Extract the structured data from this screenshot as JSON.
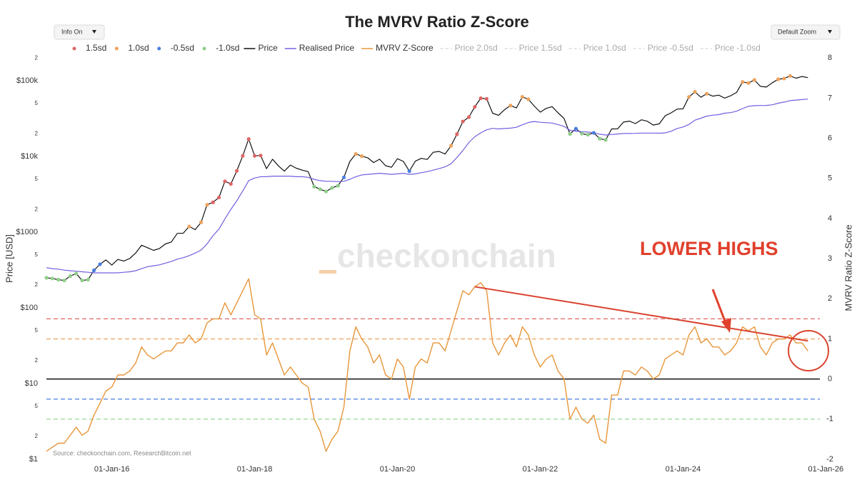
{
  "chart_data": {
    "type": "line",
    "title": "The MVRV Ratio Z-Score",
    "controls": {
      "info": "Info On",
      "zoom": "Default Zoom"
    },
    "x": [
      "2015-02",
      "2015-03",
      "2015-04",
      "2015-05",
      "2015-06",
      "2015-07",
      "2015-08",
      "2015-09",
      "2015-10",
      "2015-11",
      "2015-12",
      "2016-01",
      "2016-02",
      "2016-03",
      "2016-04",
      "2016-05",
      "2016-06",
      "2016-07",
      "2016-08",
      "2016-09",
      "2016-10",
      "2016-11",
      "2016-12",
      "2017-01",
      "2017-02",
      "2017-03",
      "2017-04",
      "2017-05",
      "2017-06",
      "2017-07",
      "2017-08",
      "2017-09",
      "2017-10",
      "2017-11",
      "2017-12",
      "2018-01",
      "2018-02",
      "2018-03",
      "2018-04",
      "2018-05",
      "2018-06",
      "2018-07",
      "2018-08",
      "2018-09",
      "2018-10",
      "2018-11",
      "2018-12",
      "2019-01",
      "2019-02",
      "2019-03",
      "2019-04",
      "2019-05",
      "2019-06",
      "2019-07",
      "2019-08",
      "2019-09",
      "2019-10",
      "2019-11",
      "2019-12",
      "2020-01",
      "2020-02",
      "2020-03",
      "2020-04",
      "2020-05",
      "2020-06",
      "2020-07",
      "2020-08",
      "2020-09",
      "2020-10",
      "2020-11",
      "2020-12",
      "2021-01",
      "2021-02",
      "2021-03",
      "2021-04",
      "2021-05",
      "2021-06",
      "2021-07",
      "2021-08",
      "2021-09",
      "2021-10",
      "2021-11",
      "2021-12",
      "2022-01",
      "2022-02",
      "2022-03",
      "2022-04",
      "2022-05",
      "2022-06",
      "2022-07",
      "2022-08",
      "2022-09",
      "2022-10",
      "2022-11",
      "2022-12",
      "2023-01",
      "2023-02",
      "2023-03",
      "2023-04",
      "2023-05",
      "2023-06",
      "2023-07",
      "2023-08",
      "2023-09",
      "2023-10",
      "2023-11",
      "2023-12",
      "2024-01",
      "2024-02",
      "2024-03",
      "2024-04",
      "2024-05",
      "2024-06",
      "2024-07",
      "2024-08",
      "2024-09",
      "2024-10",
      "2024-11",
      "2024-12",
      "2025-01",
      "2025-02",
      "2025-03",
      "2025-04",
      "2025-05",
      "2025-06",
      "2025-07",
      "2025-08",
      "2025-09",
      "2025-10"
    ],
    "xlim": [
      "2015-02",
      "2025-12"
    ],
    "xticks": [
      {
        "value": "2016-01",
        "label": "01-Jan-16"
      },
      {
        "value": "2018-01",
        "label": "01-Jan-18"
      },
      {
        "value": "2020-01",
        "label": "01-Jan-20"
      },
      {
        "value": "2022-01",
        "label": "01-Jan-22"
      },
      {
        "value": "2024-01",
        "label": "01-Jan-24"
      },
      {
        "value": "2026-01",
        "label": "01-Jan-26"
      }
    ],
    "ylog": true,
    "ylim": [
      1,
      255000
    ],
    "yticks": [
      {
        "value": 1,
        "label": "$1"
      },
      2,
      5,
      {
        "value": 10,
        "label": "$10"
      },
      {
        "value": 20,
        "label": "2"
      },
      {
        "value": 50,
        "label": "5"
      },
      {
        "value": 100,
        "label": "$100"
      },
      {
        "value": 200,
        "label": "2"
      },
      {
        "value": 500,
        "label": "5"
      },
      {
        "value": 1000,
        "label": "$1000"
      },
      {
        "value": 2000,
        "label": "2"
      },
      {
        "value": 5000,
        "label": "5"
      },
      {
        "value": 10000,
        "label": "$10k"
      },
      {
        "value": 20000,
        "label": "2"
      },
      {
        "value": 50000,
        "label": "5"
      },
      {
        "value": 100000,
        "label": "$100k"
      },
      {
        "value": 200000,
        "label": "2"
      }
    ],
    "ylabel": "Price [USD]",
    "y2lim": [
      -2,
      8.2
    ],
    "y2ticks": [
      -2,
      -1,
      0,
      1,
      2,
      3,
      4,
      5,
      6,
      7,
      8
    ],
    "y2label": "MVRV Ratio Z-Score",
    "series": [
      {
        "name": "Price",
        "color": "#111111",
        "values": [
          250,
          245,
          236,
          230,
          263,
          284,
          230,
          236,
          314,
          377,
          430,
          368,
          437,
          416,
          448,
          531,
          673,
          624,
          575,
          609,
          700,
          742,
          964,
          970,
          1190,
          1080,
          1350,
          2300,
          2480,
          2875,
          4700,
          4340,
          6470,
          10200,
          17000,
          10200,
          10300,
          6900,
          9200,
          7500,
          6400,
          7700,
          7000,
          6600,
          6300,
          4000,
          3700,
          3450,
          3850,
          4100,
          5300,
          8600,
          10800,
          10100,
          9600,
          8300,
          9200,
          7550,
          7200,
          9350,
          8600,
          6400,
          8650,
          9450,
          9150,
          11350,
          11650,
          10780,
          13800,
          19700,
          29000,
          33100,
          45200,
          58800,
          57700,
          37300,
          35000,
          41500,
          47100,
          43800,
          61300,
          57000,
          46300,
          38500,
          43200,
          45500,
          37700,
          31800,
          19800,
          23300,
          20050,
          19400,
          20500,
          17200,
          16550,
          23100,
          23150,
          28500,
          29300,
          27200,
          30500,
          29200,
          26000,
          27000,
          34500,
          37700,
          42300,
          42600,
          61200,
          71300,
          60600,
          67500,
          62700,
          64600,
          59000,
          63300,
          70200,
          96400,
          93400,
          102400,
          84400,
          82500,
          94200,
          104600,
          107100,
          115800,
          108200,
          114000,
          110000
        ]
      },
      {
        "name": "Realised Price",
        "color": "#7060e0",
        "values": [
          340,
          330,
          325,
          315,
          310,
          305,
          300,
          295,
          290,
          290,
          290,
          290,
          290,
          295,
          300,
          310,
          330,
          350,
          360,
          370,
          390,
          410,
          440,
          460,
          490,
          530,
          580,
          700,
          900,
          1100,
          1500,
          2000,
          2600,
          3500,
          4800,
          5200,
          5400,
          5400,
          5500,
          5500,
          5500,
          5500,
          5400,
          5400,
          5300,
          5000,
          4800,
          4700,
          4700,
          4650,
          4700,
          5000,
          5400,
          5700,
          5800,
          5900,
          6000,
          5900,
          5800,
          5900,
          6000,
          5800,
          5900,
          6100,
          6300,
          6600,
          6900,
          7300,
          8000,
          9700,
          12000,
          15300,
          18200,
          20500,
          22500,
          23500,
          23100,
          23400,
          23700,
          24300,
          26200,
          28100,
          29000,
          28300,
          28000,
          27600,
          26400,
          25000,
          22200,
          21600,
          21300,
          21000,
          20600,
          19700,
          19200,
          19500,
          19800,
          20100,
          20100,
          20200,
          20400,
          20400,
          20400,
          20300,
          20500,
          21500,
          23400,
          24500,
          26500,
          30200,
          32000,
          34200,
          35100,
          35700,
          37300,
          37900,
          39600,
          42900,
          46000,
          46900,
          47100,
          47200,
          48200,
          50500,
          52300,
          54600,
          55600,
          56400,
          57300
        ]
      },
      {
        "name": "MVRV Z-Score",
        "color": "#e8963a",
        "axis": "y2",
        "values": [
          -1.8,
          -1.7,
          -1.6,
          -1.6,
          -1.4,
          -1.2,
          -1.4,
          -1.3,
          -0.9,
          -0.6,
          -0.3,
          -0.2,
          0.1,
          0.1,
          0.2,
          0.4,
          0.8,
          0.6,
          0.5,
          0.6,
          0.7,
          0.7,
          0.9,
          0.9,
          1.1,
          0.9,
          1.0,
          1.4,
          1.5,
          1.5,
          1.9,
          1.6,
          1.9,
          2.2,
          2.5,
          1.6,
          1.5,
          0.6,
          0.9,
          0.5,
          0.1,
          0.3,
          0.1,
          -0.1,
          -0.2,
          -1.0,
          -1.3,
          -1.8,
          -1.5,
          -1.3,
          -0.7,
          0.7,
          1.3,
          1.0,
          0.8,
          0.4,
          0.6,
          0.1,
          0.0,
          0.5,
          0.3,
          -0.5,
          0.3,
          0.5,
          0.4,
          0.9,
          0.9,
          0.7,
          1.2,
          1.7,
          2.2,
          2.1,
          2.3,
          2.4,
          2.2,
          0.9,
          0.6,
          0.9,
          1.1,
          0.8,
          1.3,
          1.1,
          0.6,
          0.3,
          0.5,
          0.6,
          0.2,
          0.0,
          -1.0,
          -0.7,
          -1.0,
          -1.1,
          -0.9,
          -1.5,
          -1.6,
          -0.4,
          -0.4,
          0.2,
          0.2,
          0.1,
          0.3,
          0.2,
          0.0,
          0.1,
          0.5,
          0.6,
          0.7,
          0.6,
          1.1,
          1.3,
          0.9,
          1.0,
          0.8,
          0.8,
          0.6,
          0.7,
          0.9,
          1.3,
          1.2,
          1.3,
          0.8,
          0.6,
          0.9,
          1.0,
          1.0,
          1.1,
          0.9,
          0.9,
          0.7
        ]
      }
    ],
    "levels": [
      {
        "name": "1.5sd",
        "value": 1.5,
        "color": "#e06666"
      },
      {
        "name": "1.0sd",
        "value": 1.0,
        "color": "#eea25c"
      },
      {
        "name": "-0.5sd",
        "value": -0.5,
        "color": "#4a7de0"
      },
      {
        "name": "-1.0sd",
        "value": -1.0,
        "color": "#8fcf8a"
      }
    ],
    "hidden_legend": [
      "Price 2.0sd",
      "Price 1.5sd",
      "Price 1.0sd",
      "Price -0.5sd",
      "Price -1.0sd"
    ],
    "trendline": {
      "x": [
        "2021-02",
        "2025-10"
      ],
      "values": [
        2.3,
        0.95
      ],
      "color": "#d9432f"
    },
    "annotation": "LOWER HIGHS",
    "watermark": "checkonchain",
    "source": "Source: checkonchain.com, ResearchBitcoin.net"
  }
}
